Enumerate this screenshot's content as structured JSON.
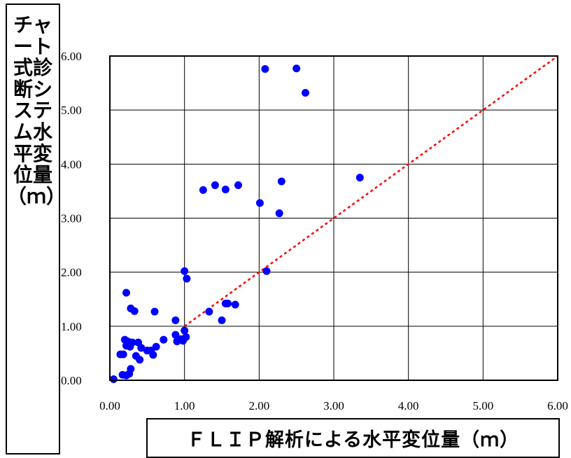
{
  "chart_data": {
    "type": "scatter",
    "xlabel": "ＦＬＩＰ解析による水平変位量（ｍ）",
    "ylabel": "チャート式診断システム水平変位量（ｍ）",
    "xlim": [
      0,
      6
    ],
    "ylim": [
      0,
      6
    ],
    "x_ticks": [
      "0.00",
      "1.00",
      "2.00",
      "3.00",
      "4.00",
      "5.00",
      "6.00"
    ],
    "y_ticks": [
      "0.00",
      "1.00",
      "2.00",
      "3.00",
      "4.00",
      "5.00",
      "6.00"
    ],
    "grid": true,
    "legend": false,
    "marker_color": "#0000ff",
    "reference_line": {
      "style": "dotted",
      "color": "#ff0000",
      "from": [
        1.0,
        1.0
      ],
      "to": [
        6.0,
        6.0
      ]
    },
    "points": [
      [
        0.05,
        0.02
      ],
      [
        0.14,
        0.48
      ],
      [
        0.18,
        0.48
      ],
      [
        0.17,
        0.1
      ],
      [
        0.22,
        0.09
      ],
      [
        0.26,
        0.12
      ],
      [
        0.2,
        0.75
      ],
      [
        0.24,
        0.72
      ],
      [
        0.22,
        0.64
      ],
      [
        0.27,
        0.62
      ],
      [
        0.3,
        0.7
      ],
      [
        0.28,
        0.21
      ],
      [
        0.35,
        0.45
      ],
      [
        0.38,
        0.7
      ],
      [
        0.4,
        0.38
      ],
      [
        0.42,
        0.6
      ],
      [
        0.5,
        0.55
      ],
      [
        0.55,
        0.55
      ],
      [
        0.58,
        0.47
      ],
      [
        0.62,
        0.62
      ],
      [
        0.72,
        0.75
      ],
      [
        0.88,
        0.84
      ],
      [
        0.9,
        0.72
      ],
      [
        0.95,
        0.76
      ],
      [
        0.98,
        0.73
      ],
      [
        1.0,
        0.92
      ],
      [
        1.02,
        0.8
      ],
      [
        0.22,
        1.62
      ],
      [
        0.28,
        1.33
      ],
      [
        0.33,
        1.28
      ],
      [
        0.6,
        1.27
      ],
      [
        0.88,
        1.11
      ],
      [
        1.0,
        2.02
      ],
      [
        1.03,
        1.88
      ],
      [
        1.33,
        1.27
      ],
      [
        1.5,
        1.11
      ],
      [
        1.55,
        1.42
      ],
      [
        1.58,
        1.42
      ],
      [
        1.68,
        1.4
      ],
      [
        1.25,
        3.52
      ],
      [
        1.41,
        3.61
      ],
      [
        1.55,
        3.53
      ],
      [
        1.72,
        3.61
      ],
      [
        2.01,
        3.28
      ],
      [
        2.1,
        2.02
      ],
      [
        2.27,
        3.09
      ],
      [
        2.3,
        3.68
      ],
      [
        2.08,
        5.76
      ],
      [
        2.5,
        5.77
      ],
      [
        2.62,
        5.32
      ],
      [
        3.35,
        3.75
      ]
    ]
  }
}
